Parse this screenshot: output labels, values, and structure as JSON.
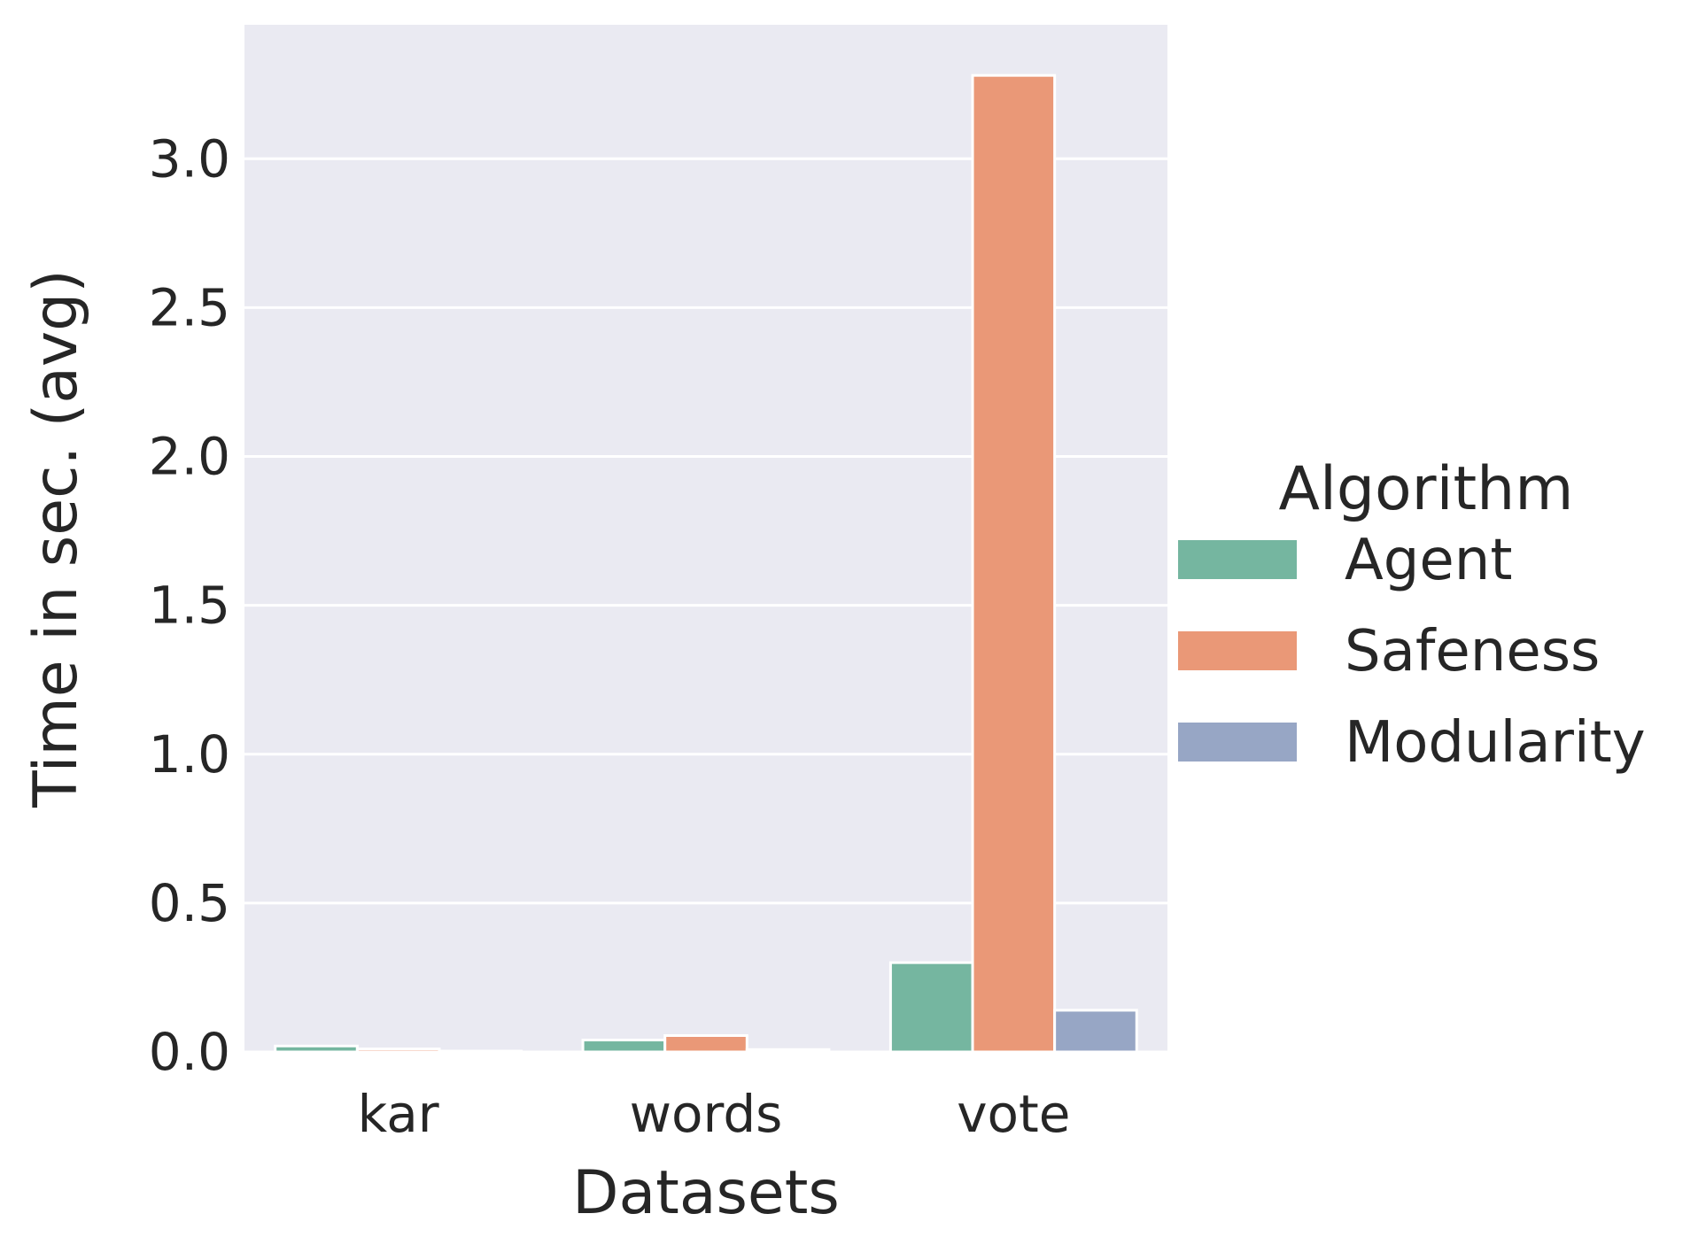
{
  "chart_data": {
    "type": "bar",
    "title": "",
    "xlabel": "Datasets",
    "ylabel": "Time in sec. (avg)",
    "categories": [
      "kar",
      "words",
      "vote"
    ],
    "series": [
      {
        "name": "Agent",
        "color": "#75b6a0",
        "values": [
          0.02,
          0.04,
          0.3
        ]
      },
      {
        "name": "Safeness",
        "color": "#ea9877",
        "values": [
          0.01,
          0.055,
          3.28
        ]
      },
      {
        "name": "Modularity",
        "color": "#97a6c5",
        "values": [
          0.003,
          0.008,
          0.14
        ]
      }
    ],
    "ylim": [
      0,
      3.45
    ],
    "yticks": [
      "0.0",
      "0.5",
      "1.0",
      "1.5",
      "2.0",
      "2.5",
      "3.0"
    ],
    "legend": {
      "title": "Algorithm",
      "placement": "right"
    },
    "grid": true,
    "style": {
      "background": "#eaeaf2",
      "grid_color": "#ffffff"
    }
  }
}
